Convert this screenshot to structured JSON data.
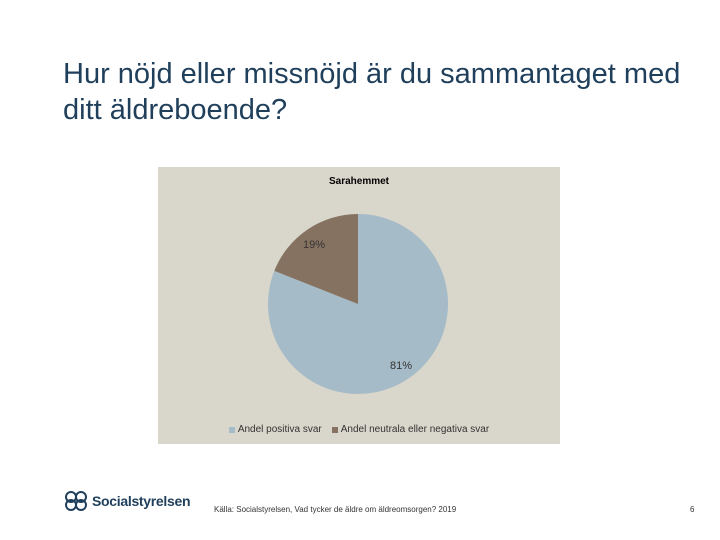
{
  "slide": {
    "title": "Hur nöjd eller missnöjd är du sammantaget med ditt äldreboende?",
    "source": "Källa: Socialstyrelsen, Vad tycker de äldre om äldreomsorgen? 2019",
    "page_number": "6",
    "logo_text": "Socialstyrelsen"
  },
  "chart_data": {
    "type": "pie",
    "title": "Sarahemmet",
    "categories": [
      "Andel positiva svar",
      "Andel neutrala eller negativa svar"
    ],
    "values": [
      81,
      19
    ],
    "labels": [
      "81%",
      "19%"
    ],
    "colors": [
      "#a6bbc8",
      "#857261"
    ],
    "legend_position": "bottom"
  }
}
